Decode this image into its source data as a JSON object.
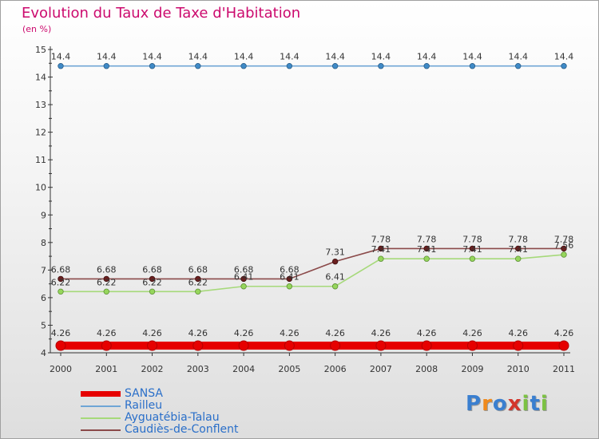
{
  "chart_data": {
    "type": "line",
    "title": "Evolution du Taux de Taxe d'Habitation",
    "subtitle": "(en %)",
    "x": [
      "2000",
      "2001",
      "2002",
      "2003",
      "2004",
      "2005",
      "2006",
      "2007",
      "2008",
      "2009",
      "2010",
      "2011"
    ],
    "ylim": [
      4,
      15
    ],
    "yticks": [
      "4",
      "5",
      "6",
      "7",
      "8",
      "9",
      "10",
      "11",
      "12",
      "13",
      "14",
      "15"
    ],
    "grid": false,
    "legend_position": "bottom-left",
    "series": [
      {
        "name": "SANSA",
        "color": "#e60000",
        "values": [
          4.26,
          4.26,
          4.26,
          4.26,
          4.26,
          4.26,
          4.26,
          4.26,
          4.26,
          4.26,
          4.26,
          4.26
        ],
        "labels": [
          "4.26",
          "4.26",
          "4.26",
          "4.26",
          "4.26",
          "4.26",
          "4.26",
          "4.26",
          "4.26",
          "4.26",
          "4.26",
          "4.26"
        ]
      },
      {
        "name": "Railleu",
        "color": "#6fa6d6",
        "values": [
          14.4,
          14.4,
          14.4,
          14.4,
          14.4,
          14.4,
          14.4,
          14.4,
          14.4,
          14.4,
          14.4,
          14.4
        ],
        "labels": [
          "14.4",
          "14.4",
          "14.4",
          "14.4",
          "14.4",
          "14.4",
          "14.4",
          "14.4",
          "14.4",
          "14.4",
          "14.4",
          "14.4"
        ]
      },
      {
        "name": "Ayguatébia-Talau",
        "color": "#a6d97a",
        "values": [
          6.22,
          6.22,
          6.22,
          6.22,
          6.41,
          6.41,
          6.41,
          7.41,
          7.41,
          7.41,
          7.41,
          7.56
        ],
        "labels": [
          "6.22",
          "6.22",
          "6.22",
          "6.22",
          "6.41",
          "6.41",
          "6.41",
          "7.41",
          "7.41",
          "7.41",
          "7.41",
          "7.56"
        ]
      },
      {
        "name": "Caudiès-de-Conflent",
        "color": "#8b4a4a",
        "values": [
          6.68,
          6.68,
          6.68,
          6.68,
          6.68,
          6.68,
          7.31,
          7.78,
          7.78,
          7.78,
          7.78,
          7.78
        ],
        "labels": [
          "6.68",
          "6.68",
          "6.68",
          "6.68",
          "6.68",
          "6.68",
          "7.31",
          "7.78",
          "7.78",
          "7.78",
          "7.78",
          "7.78"
        ]
      }
    ]
  },
  "legend": {
    "items": [
      {
        "label": "SANSA"
      },
      {
        "label": "Railleu"
      },
      {
        "label": "Ayguatébia-Talau"
      },
      {
        "label": "Caudiès-de-Conflent"
      }
    ]
  },
  "logo": {
    "text": "Proxiti",
    "letters": [
      "P",
      "r",
      "o",
      "x",
      "i",
      "t",
      "i"
    ],
    "colors": [
      "#3a7fd0",
      "#f08a1c",
      "#3a7fd0",
      "#d3352b",
      "#7cc242",
      "#3a7fd0",
      "#7cc242"
    ]
  }
}
